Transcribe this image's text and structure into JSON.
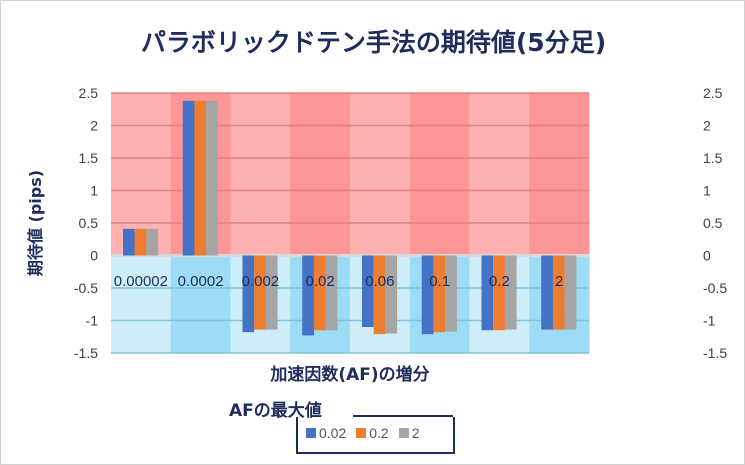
{
  "chart_data": {
    "type": "bar",
    "title": "パラボリックドテン手法の期待値(5分足)",
    "xlabel": "加速因数(AF)の増分",
    "ylabel": "期待値 (pips)",
    "categories": [
      "0.00002",
      "0.0002",
      "0.002",
      "0.02",
      "0.06",
      "0.1",
      "0.2",
      "2"
    ],
    "ylim": [
      -1.5,
      2.5
    ],
    "yticks": [
      "2.5",
      "2",
      "1.5",
      "1",
      "0.5",
      "0",
      "-0.5",
      "-1",
      "-1.5"
    ],
    "legend_title": "AFの最大値",
    "legend_position": "bottom",
    "series": [
      {
        "name": "0.02",
        "color": "#4472c4",
        "values": [
          0.41,
          2.38,
          -1.18,
          -1.23,
          -1.1,
          -1.21,
          -1.15,
          -1.14
        ]
      },
      {
        "name": "0.2",
        "color": "#ed7d31",
        "values": [
          0.41,
          2.38,
          -1.14,
          -1.15,
          -1.21,
          -1.18,
          -1.15,
          -1.14
        ]
      },
      {
        "name": "2",
        "color": "#a5a5a5",
        "values": [
          0.41,
          2.38,
          -1.14,
          -1.15,
          -1.2,
          -1.17,
          -1.14,
          -1.14
        ]
      }
    ],
    "background_colors": {
      "positive": [
        "#fdb1b1",
        "#fd9696"
      ],
      "negative": [
        "#cdeef9",
        "#9cdcf6"
      ]
    }
  }
}
